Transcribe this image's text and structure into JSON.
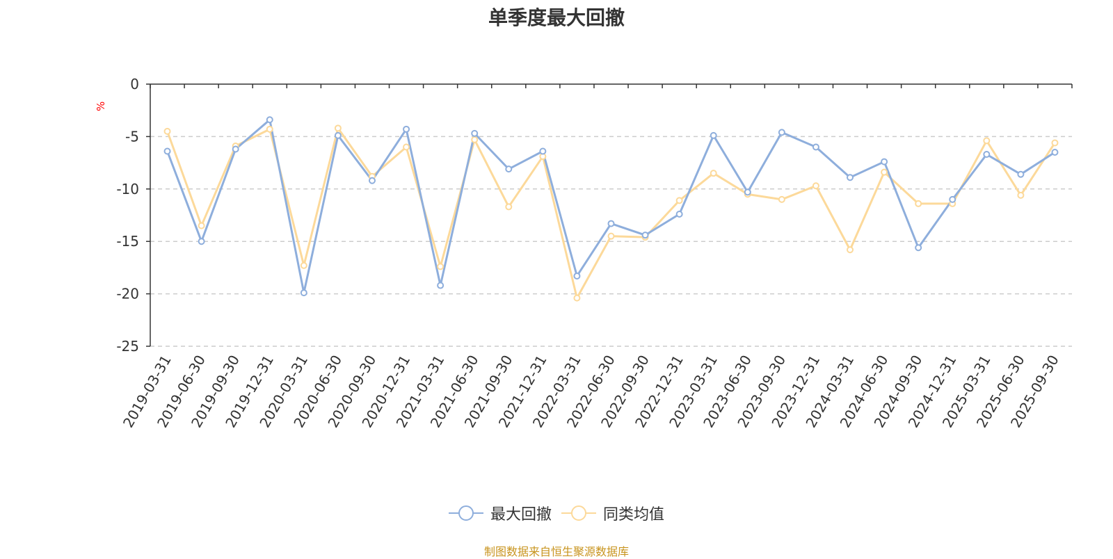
{
  "chart_data": {
    "type": "line",
    "title": "单季度最大回撤",
    "ylabel": "%",
    "ylim": [
      -25,
      0
    ],
    "yticks": [
      0,
      -5,
      -10,
      -15,
      -20,
      -25
    ],
    "legend_position": "bottom-center",
    "categories": [
      "2019-03-31",
      "2019-06-30",
      "2019-09-30",
      "2019-12-31",
      "2020-03-31",
      "2020-06-30",
      "2020-09-30",
      "2020-12-31",
      "2021-03-31",
      "2021-06-30",
      "2021-09-30",
      "2021-12-31",
      "2022-03-31",
      "2022-06-30",
      "2022-09-30",
      "2022-12-31",
      "2023-03-31",
      "2023-06-30",
      "2023-09-30",
      "2023-12-31",
      "2024-03-31",
      "2024-06-30",
      "2024-09-30",
      "2024-12-31",
      "2025-03-31",
      "2025-06-30",
      "2025-09-30"
    ],
    "series": [
      {
        "name": "最大回撤",
        "color": "#8eaedc",
        "values": [
          -6.4,
          -15.0,
          -6.2,
          -3.4,
          -19.9,
          -4.9,
          -9.2,
          -4.3,
          -19.2,
          -4.7,
          -8.1,
          -6.4,
          -18.3,
          -13.3,
          -14.4,
          -12.4,
          -4.9,
          -10.3,
          -4.6,
          -6.0,
          -8.9,
          -7.4,
          -15.6,
          -11.0,
          -6.7,
          -8.6,
          -6.5
        ]
      },
      {
        "name": "同类均值",
        "color": "#fcd99a",
        "values": [
          -4.5,
          -13.5,
          -5.9,
          -4.3,
          -17.3,
          -4.2,
          -8.8,
          -6.0,
          -17.4,
          -5.3,
          -11.7,
          -6.9,
          -20.4,
          -14.5,
          -14.6,
          -11.1,
          -8.5,
          -10.5,
          -11.0,
          -9.7,
          -15.8,
          -8.4,
          -11.4,
          -11.4,
          -5.4,
          -10.6,
          -5.6
        ]
      }
    ]
  },
  "source_text": "制图数据来自恒生聚源数据库"
}
